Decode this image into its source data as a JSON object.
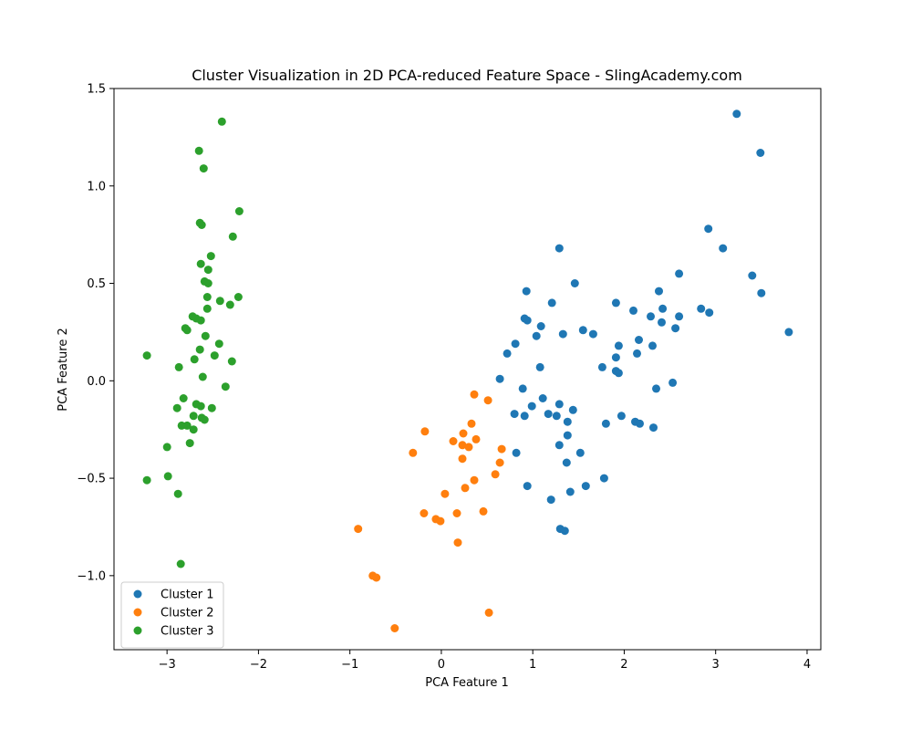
{
  "chart_data": {
    "type": "scatter",
    "title": "Cluster Visualization in 2D PCA-reduced Feature Space - SlingAcademy.com",
    "xlabel": "PCA Feature 1",
    "ylabel": "PCA Feature 2",
    "xlim": [
      -3.58,
      4.15
    ],
    "ylim": [
      -1.38,
      1.5
    ],
    "xticks": [
      -3,
      -2,
      -1,
      0,
      1,
      2,
      3,
      4
    ],
    "xtick_labels": [
      "−3",
      "−2",
      "−1",
      "0",
      "1",
      "2",
      "3",
      "4"
    ],
    "yticks": [
      -1.0,
      -0.5,
      0.0,
      0.5,
      1.0,
      1.5
    ],
    "ytick_labels": [
      "−1.0",
      "−0.5",
      "0.0",
      "0.5",
      "1.0",
      "1.5"
    ],
    "grid": false,
    "legend_position": "lower-left",
    "series": [
      {
        "name": "Cluster 1",
        "color": "#1f77b4",
        "points": [
          [
            3.23,
            1.37
          ],
          [
            3.49,
            1.17
          ],
          [
            2.92,
            0.78
          ],
          [
            3.08,
            0.68
          ],
          [
            3.4,
            0.54
          ],
          [
            3.5,
            0.45
          ],
          [
            3.8,
            0.25
          ],
          [
            2.6,
            0.55
          ],
          [
            2.38,
            0.46
          ],
          [
            2.84,
            0.37
          ],
          [
            2.93,
            0.35
          ],
          [
            2.42,
            0.37
          ],
          [
            2.29,
            0.33
          ],
          [
            2.41,
            0.3
          ],
          [
            2.56,
            0.27
          ],
          [
            2.6,
            0.33
          ],
          [
            2.1,
            0.36
          ],
          [
            1.91,
            0.4
          ],
          [
            1.29,
            0.68
          ],
          [
            1.46,
            0.5
          ],
          [
            0.93,
            0.46
          ],
          [
            1.21,
            0.4
          ],
          [
            0.91,
            0.32
          ],
          [
            0.94,
            0.31
          ],
          [
            1.09,
            0.28
          ],
          [
            1.04,
            0.23
          ],
          [
            1.55,
            0.26
          ],
          [
            1.66,
            0.24
          ],
          [
            1.33,
            0.24
          ],
          [
            0.81,
            0.19
          ],
          [
            0.72,
            0.14
          ],
          [
            1.94,
            0.18
          ],
          [
            2.31,
            0.18
          ],
          [
            2.16,
            0.21
          ],
          [
            2.14,
            0.14
          ],
          [
            1.91,
            0.12
          ],
          [
            1.76,
            0.07
          ],
          [
            1.91,
            0.05
          ],
          [
            1.94,
            0.04
          ],
          [
            1.08,
            0.07
          ],
          [
            0.64,
            0.01
          ],
          [
            2.53,
            -0.01
          ],
          [
            2.35,
            -0.04
          ],
          [
            0.89,
            -0.04
          ],
          [
            1.11,
            -0.09
          ],
          [
            0.99,
            -0.13
          ],
          [
            1.29,
            -0.12
          ],
          [
            1.44,
            -0.15
          ],
          [
            0.8,
            -0.17
          ],
          [
            0.91,
            -0.18
          ],
          [
            1.17,
            -0.17
          ],
          [
            1.26,
            -0.18
          ],
          [
            1.38,
            -0.21
          ],
          [
            1.97,
            -0.18
          ],
          [
            1.8,
            -0.22
          ],
          [
            2.12,
            -0.21
          ],
          [
            2.17,
            -0.22
          ],
          [
            2.32,
            -0.24
          ],
          [
            1.38,
            -0.28
          ],
          [
            1.29,
            -0.33
          ],
          [
            0.82,
            -0.37
          ],
          [
            1.52,
            -0.37
          ],
          [
            1.37,
            -0.42
          ],
          [
            1.78,
            -0.5
          ],
          [
            1.58,
            -0.54
          ],
          [
            0.94,
            -0.54
          ],
          [
            1.41,
            -0.57
          ],
          [
            1.2,
            -0.61
          ],
          [
            1.3,
            -0.76
          ],
          [
            1.35,
            -0.77
          ]
        ]
      },
      {
        "name": "Cluster 2",
        "color": "#ff7f0e",
        "points": [
          [
            0.36,
            -0.07
          ],
          [
            0.51,
            -0.1
          ],
          [
            -0.18,
            -0.26
          ],
          [
            0.24,
            -0.27
          ],
          [
            0.33,
            -0.22
          ],
          [
            0.38,
            -0.3
          ],
          [
            0.13,
            -0.31
          ],
          [
            0.23,
            -0.33
          ],
          [
            0.3,
            -0.34
          ],
          [
            0.66,
            -0.35
          ],
          [
            -0.31,
            -0.37
          ],
          [
            0.23,
            -0.4
          ],
          [
            0.64,
            -0.42
          ],
          [
            0.59,
            -0.48
          ],
          [
            0.36,
            -0.51
          ],
          [
            0.26,
            -0.55
          ],
          [
            0.04,
            -0.58
          ],
          [
            0.46,
            -0.67
          ],
          [
            -0.19,
            -0.68
          ],
          [
            0.17,
            -0.68
          ],
          [
            -0.06,
            -0.71
          ],
          [
            -0.01,
            -0.72
          ],
          [
            -0.91,
            -0.76
          ],
          [
            0.18,
            -0.83
          ],
          [
            -0.75,
            -1.0
          ],
          [
            -0.71,
            -1.01
          ],
          [
            0.52,
            -1.19
          ],
          [
            -0.51,
            -1.27
          ]
        ]
      },
      {
        "name": "Cluster 3",
        "color": "#2ca02c",
        "points": [
          [
            -2.4,
            1.33
          ],
          [
            -2.65,
            1.18
          ],
          [
            -2.6,
            1.09
          ],
          [
            -2.21,
            0.87
          ],
          [
            -2.64,
            0.81
          ],
          [
            -2.62,
            0.8
          ],
          [
            -2.28,
            0.74
          ],
          [
            -2.52,
            0.64
          ],
          [
            -2.63,
            0.6
          ],
          [
            -2.55,
            0.57
          ],
          [
            -2.59,
            0.51
          ],
          [
            -2.55,
            0.5
          ],
          [
            -2.22,
            0.43
          ],
          [
            -2.56,
            0.43
          ],
          [
            -2.42,
            0.41
          ],
          [
            -2.31,
            0.39
          ],
          [
            -2.56,
            0.37
          ],
          [
            -2.72,
            0.33
          ],
          [
            -2.68,
            0.32
          ],
          [
            -2.63,
            0.31
          ],
          [
            -2.8,
            0.27
          ],
          [
            -2.78,
            0.26
          ],
          [
            -2.58,
            0.23
          ],
          [
            -2.43,
            0.19
          ],
          [
            -2.64,
            0.16
          ],
          [
            -3.22,
            0.13
          ],
          [
            -2.48,
            0.13
          ],
          [
            -2.7,
            0.11
          ],
          [
            -2.29,
            0.1
          ],
          [
            -2.87,
            0.07
          ],
          [
            -2.61,
            0.02
          ],
          [
            -2.36,
            -0.03
          ],
          [
            -2.82,
            -0.09
          ],
          [
            -2.68,
            -0.12
          ],
          [
            -2.63,
            -0.13
          ],
          [
            -2.89,
            -0.14
          ],
          [
            -2.51,
            -0.14
          ],
          [
            -2.71,
            -0.18
          ],
          [
            -2.62,
            -0.19
          ],
          [
            -2.59,
            -0.2
          ],
          [
            -2.84,
            -0.23
          ],
          [
            -2.78,
            -0.23
          ],
          [
            -2.71,
            -0.25
          ],
          [
            -2.75,
            -0.32
          ],
          [
            -3.0,
            -0.34
          ],
          [
            -2.99,
            -0.49
          ],
          [
            -3.22,
            -0.51
          ],
          [
            -2.88,
            -0.58
          ],
          [
            -2.85,
            -0.94
          ]
        ]
      }
    ]
  }
}
